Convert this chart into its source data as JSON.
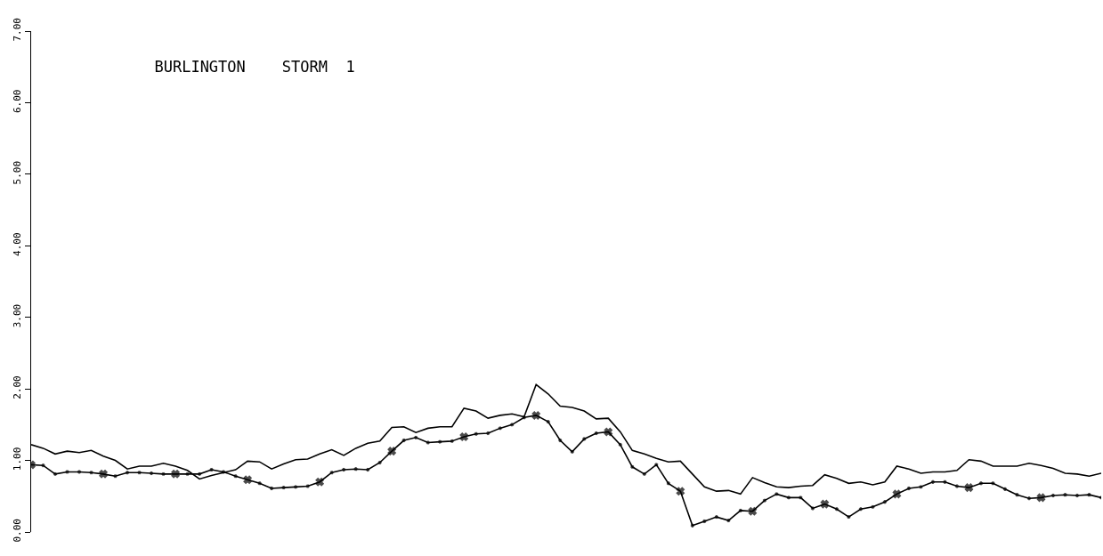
{
  "chart_data": {
    "type": "line",
    "title": "BURLINGTON    STORM  1",
    "categories": [
      null,
      null,
      null,
      null,
      null,
      null,
      null,
      null,
      null,
      null,
      null,
      null,
      null,
      null,
      null,
      null,
      null,
      null,
      null,
      null,
      null,
      null,
      null,
      null,
      null,
      null,
      null,
      null,
      null,
      null,
      null,
      null,
      null,
      null,
      null,
      null,
      null,
      null,
      null,
      null,
      null,
      null,
      null,
      null,
      null,
      null,
      null,
      null,
      null,
      null,
      null,
      null,
      null,
      null,
      null,
      null,
      null,
      null,
      null,
      null,
      null,
      null,
      null,
      null,
      null,
      null,
      null,
      null,
      null,
      null,
      null,
      null,
      null,
      null,
      null,
      null,
      null,
      null,
      null,
      null,
      null,
      null,
      null,
      null,
      null,
      null,
      null,
      null,
      null,
      null
    ],
    "series": [
      {
        "color": "#000000",
        "marker": "none",
        "values": [
          1.22,
          1.17,
          1.09,
          1.13,
          1.11,
          1.14,
          1.06,
          1.0,
          0.88,
          0.92,
          0.92,
          0.96,
          0.92,
          0.86,
          0.74,
          0.79,
          0.83,
          0.87,
          0.99,
          0.98,
          0.88,
          0.95,
          1.01,
          1.02,
          1.09,
          1.15,
          1.07,
          1.17,
          1.24,
          1.27,
          1.46,
          1.47,
          1.39,
          1.45,
          1.47,
          1.47,
          1.73,
          1.69,
          1.59,
          1.63,
          1.65,
          1.61,
          2.06,
          1.93,
          1.76,
          1.74,
          1.69,
          1.58,
          1.59,
          1.4,
          1.14,
          1.09,
          1.03,
          0.98,
          0.99,
          0.81,
          0.63,
          0.57,
          0.58,
          0.53,
          0.76,
          0.69,
          0.63,
          0.62,
          0.64,
          0.65,
          0.8,
          0.75,
          0.68,
          0.7,
          0.66,
          0.7,
          0.92,
          0.88,
          0.82,
          0.84,
          0.84,
          0.86,
          1.01,
          0.99,
          0.92,
          0.92,
          0.92,
          0.96,
          0.93,
          0.89,
          0.82,
          0.81,
          0.78,
          0.82
        ]
      },
      {
        "color": "#000000",
        "marker": "cross",
        "values": [
          0.94,
          0.93,
          0.81,
          0.84,
          0.84,
          0.83,
          0.81,
          0.78,
          0.83,
          0.83,
          0.82,
          0.81,
          0.81,
          0.81,
          0.81,
          0.87,
          0.84,
          0.78,
          0.73,
          0.68,
          0.61,
          0.62,
          0.63,
          0.64,
          0.7,
          0.83,
          0.87,
          0.88,
          0.87,
          0.97,
          1.13,
          1.28,
          1.32,
          1.25,
          1.26,
          1.27,
          1.33,
          1.37,
          1.38,
          1.45,
          1.5,
          1.6,
          1.63,
          1.54,
          1.28,
          1.12,
          1.3,
          1.38,
          1.4,
          1.22,
          0.91,
          0.81,
          0.94,
          0.68,
          0.57,
          0.09,
          0.15,
          0.21,
          0.16,
          0.3,
          0.29,
          0.44,
          0.53,
          0.48,
          0.48,
          0.33,
          0.39,
          0.32,
          0.21,
          0.32,
          0.35,
          0.42,
          0.53,
          0.61,
          0.63,
          0.7,
          0.7,
          0.64,
          0.62,
          0.68,
          0.68,
          0.6,
          0.52,
          0.47,
          0.48,
          0.51,
          0.52,
          0.51,
          0.52,
          0.48
        ]
      }
    ],
    "ylim": [
      0,
      7
    ],
    "yticks": [
      {
        "value": 0,
        "label": "0.00"
      },
      {
        "value": 1,
        "label": "1.00"
      },
      {
        "value": 2,
        "label": "2.00"
      },
      {
        "value": 3,
        "label": "3.00"
      },
      {
        "value": 4,
        "label": "4.00"
      },
      {
        "value": 5,
        "label": "5.00"
      },
      {
        "value": 6,
        "label": "6.00"
      },
      {
        "value": 7,
        "label": "7.00"
      }
    ],
    "tick_labels": "y",
    "legend": false,
    "grid": false
  }
}
